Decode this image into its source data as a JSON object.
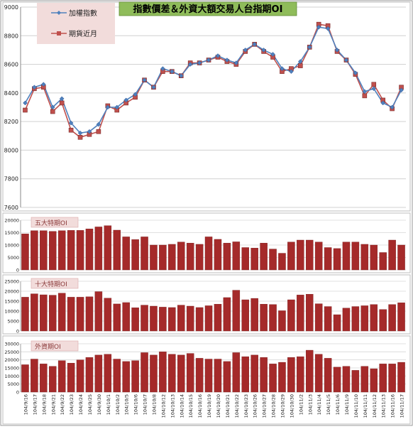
{
  "chart_data": [
    {
      "type": "line",
      "title": "指數價差＆外資大額交易人台指期OI",
      "ylim": [
        7600,
        9000
      ],
      "yticks": [
        7600,
        7800,
        8000,
        8200,
        8400,
        8600,
        8800,
        9000
      ],
      "grid": true,
      "legend_position": "top-left",
      "colors": {
        "index": "#4f81bd",
        "futures": "#c0504d",
        "title_bg": "#8fbc5a",
        "legend_bg": "#f2dcdb"
      },
      "series": [
        {
          "name": "加權指數",
          "values": [
            8330,
            8440,
            8460,
            8300,
            8360,
            8190,
            8120,
            8130,
            8180,
            8300,
            8300,
            8350,
            8390,
            8490,
            8440,
            8570,
            8550,
            8520,
            8600,
            8610,
            8630,
            8660,
            8630,
            8610,
            8700,
            8740,
            8700,
            8670,
            8570,
            8550,
            8620,
            8720,
            8860,
            8850,
            8700,
            8630,
            8540,
            8410,
            8430,
            8330,
            8300,
            8420
          ]
        },
        {
          "name": "期貨近月",
          "values": [
            8280,
            8430,
            8440,
            8270,
            8330,
            8140,
            8090,
            8110,
            8130,
            8310,
            8280,
            8330,
            8370,
            8490,
            8440,
            8550,
            8550,
            8520,
            8610,
            8610,
            8630,
            8650,
            8620,
            8600,
            8690,
            8740,
            8690,
            8650,
            8550,
            8570,
            8590,
            8720,
            8880,
            8870,
            8690,
            8630,
            8530,
            8380,
            8460,
            8350,
            8290,
            8440
          ]
        }
      ]
    },
    {
      "type": "bar",
      "ylim": [
        0,
        20000
      ],
      "yticks": [
        0,
        5000,
        10000,
        15000,
        20000
      ],
      "legend_position": "top-left",
      "color": "#a52a2a",
      "series": [
        {
          "name": "五大特期OI",
          "values": [
            14500,
            15800,
            15800,
            15500,
            15800,
            15900,
            15900,
            16500,
            17300,
            17800,
            16000,
            13300,
            12200,
            13300,
            10000,
            10000,
            10300,
            11200,
            10800,
            10300,
            13300,
            12300,
            10800,
            11300,
            9000,
            8800,
            10800,
            8400,
            6700,
            11200,
            12000,
            12000,
            11200,
            9000,
            8600,
            11200,
            11200,
            10300,
            10000,
            7000,
            12000,
            10000
          ]
        }
      ]
    },
    {
      "type": "bar",
      "ylim": [
        0,
        25000
      ],
      "yticks": [
        0,
        5000,
        10000,
        15000,
        20000,
        25000
      ],
      "legend_position": "top-left",
      "color": "#a52a2a",
      "series": [
        {
          "name": "十大特期OI",
          "values": [
            17000,
            18700,
            18200,
            18000,
            19000,
            17000,
            17000,
            17200,
            19800,
            16500,
            13600,
            14300,
            11700,
            13000,
            12500,
            12000,
            11800,
            13000,
            12500,
            11800,
            12700,
            13500,
            16800,
            20500,
            15700,
            16400,
            13500,
            13300,
            10200,
            15700,
            18100,
            18500,
            13700,
            12300,
            8200,
            11500,
            12300,
            12700,
            13300,
            10800,
            13300,
            14200
          ]
        }
      ]
    },
    {
      "type": "bar",
      "ylim": [
        0,
        30000
      ],
      "yticks": [
        0,
        5000,
        10000,
        15000,
        20000,
        25000,
        30000
      ],
      "legend_position": "top-left",
      "color": "#a52a2a",
      "categories": [
        "104/9/16",
        "104/9/17",
        "104/9/18",
        "104/9/21",
        "104/9/22",
        "104/9/23",
        "104/9/24",
        "104/9/25",
        "104/9/30",
        "104/10/1",
        "104/10/2",
        "104/10/5",
        "104/10/6",
        "104/10/7",
        "104/10/8",
        "104/10/12",
        "104/10/13",
        "104/10/14",
        "104/10/15",
        "104/10/16",
        "104/10/19",
        "104/10/20",
        "104/10/21",
        "104/10/22",
        "104/10/23",
        "104/10/26",
        "104/10/27",
        "104/10/28",
        "104/10/29",
        "104/10/30",
        "104/11/2",
        "104/11/3",
        "104/11/4",
        "104/11/5",
        "104/11/6",
        "104/11/9",
        "104/11/10",
        "104/11/11",
        "104/11/12",
        "104/11/13",
        "104/11/16",
        "104/11/17"
      ],
      "series": [
        {
          "name": "外資期OI",
          "values": [
            17000,
            20500,
            17500,
            16000,
            19500,
            18000,
            20000,
            21500,
            23000,
            23500,
            20500,
            19000,
            19500,
            24500,
            23000,
            25000,
            23500,
            23000,
            24000,
            21000,
            20500,
            20500,
            19000,
            24500,
            22000,
            23000,
            21500,
            17500,
            18500,
            21500,
            22000,
            26000,
            23500,
            21000,
            15500,
            16000,
            13500,
            16000,
            14500,
            17500,
            17500,
            18500
          ]
        }
      ]
    }
  ]
}
